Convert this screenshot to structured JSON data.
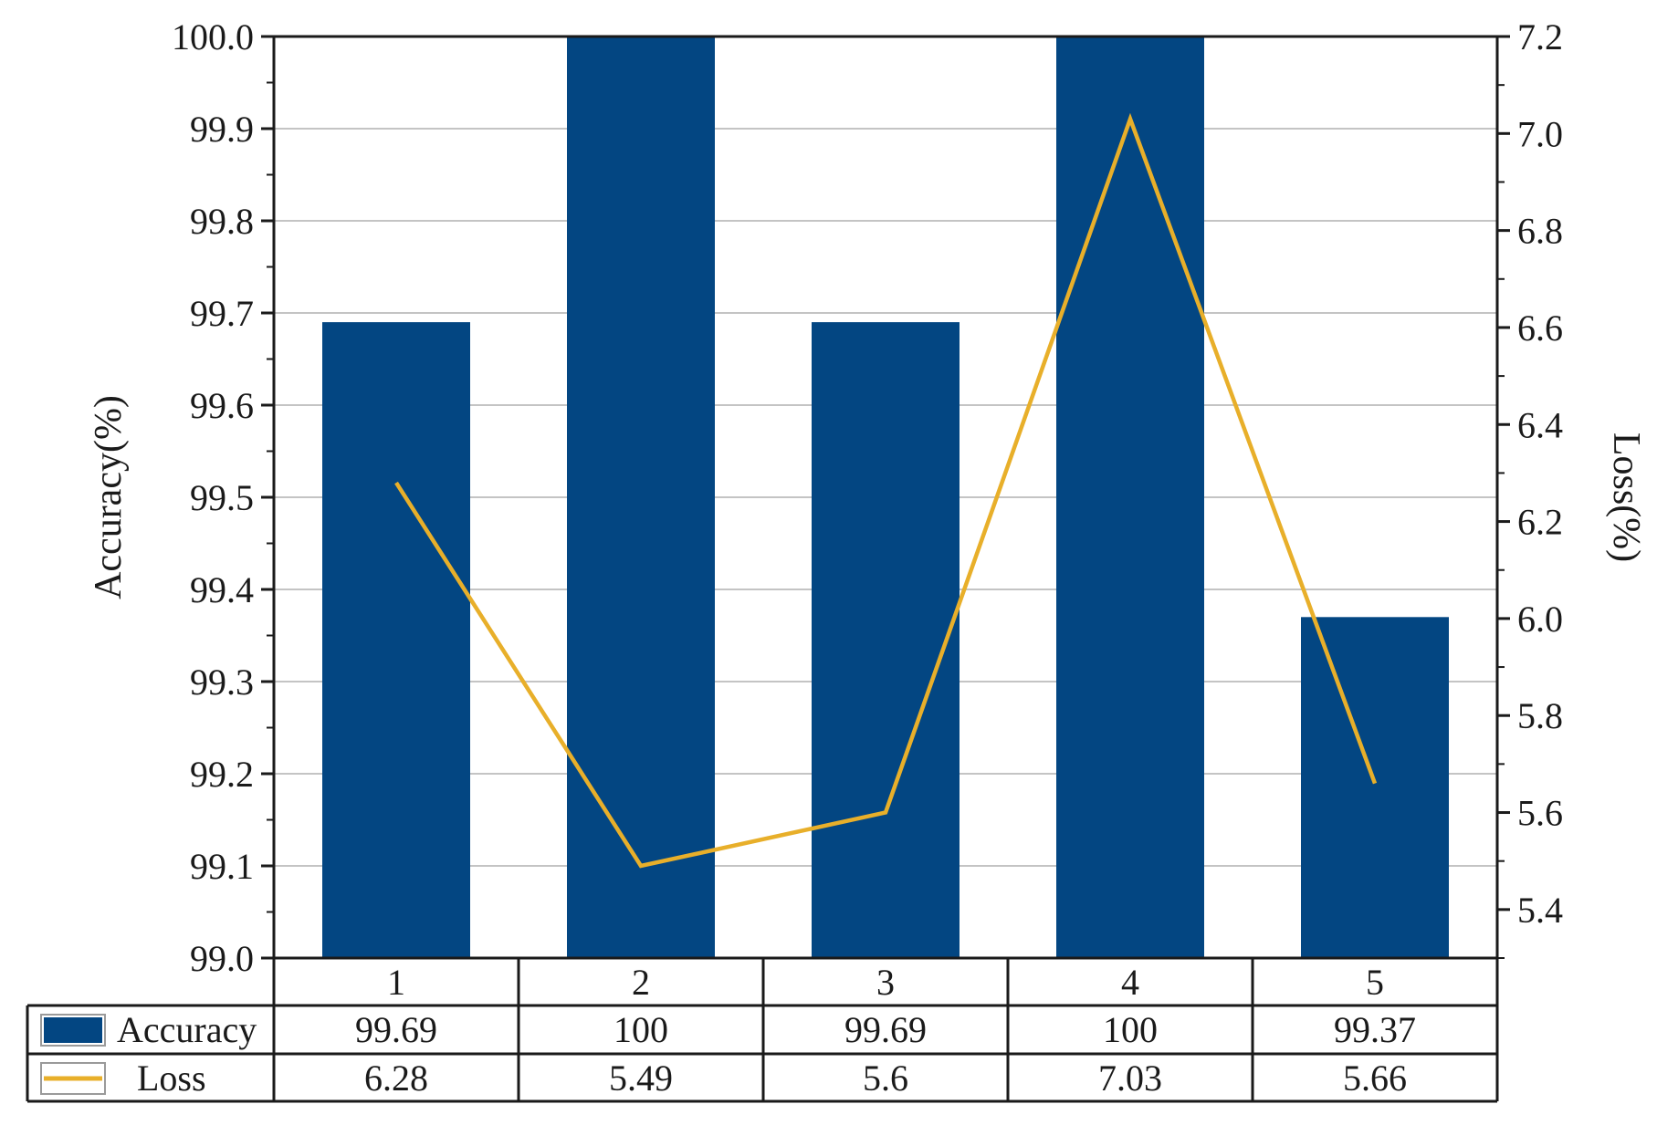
{
  "colors": {
    "bar": "#034682",
    "line": "#E8AF2A",
    "grid": "#c4c4c4",
    "axis": "#1a1a1a"
  },
  "chart_data": {
    "type": "bar",
    "categories": [
      "1",
      "2",
      "3",
      "4",
      "5"
    ],
    "series": [
      {
        "name": "Accuracy",
        "type": "bar",
        "axis": "left",
        "values": [
          99.69,
          100,
          99.69,
          100,
          99.37
        ]
      },
      {
        "name": "Loss",
        "type": "line",
        "axis": "right",
        "values": [
          6.28,
          5.49,
          5.6,
          7.03,
          5.66
        ]
      }
    ],
    "table_values": {
      "Accuracy": [
        "99.69",
        "100",
        "99.69",
        "100",
        "99.37"
      ],
      "Loss": [
        "6.28",
        "5.49",
        "5.6",
        "7.03",
        "5.66"
      ]
    },
    "ylabel": "Accuracy(%)",
    "ylabel_right": "Loss(%)",
    "ylim": [
      99.0,
      100.0
    ],
    "ylim_right": [
      5.3,
      7.2
    ],
    "yticks": [
      "99.0",
      "99.1",
      "99.2",
      "99.3",
      "99.4",
      "99.5",
      "99.6",
      "99.7",
      "99.8",
      "99.9",
      "100.0"
    ],
    "yticks_right": [
      "5.4",
      "5.6",
      "5.8",
      "6.0",
      "6.2",
      "6.4",
      "6.6",
      "6.8",
      "7.0",
      "7.2"
    ],
    "grid": true,
    "legend": "data-table-below"
  }
}
